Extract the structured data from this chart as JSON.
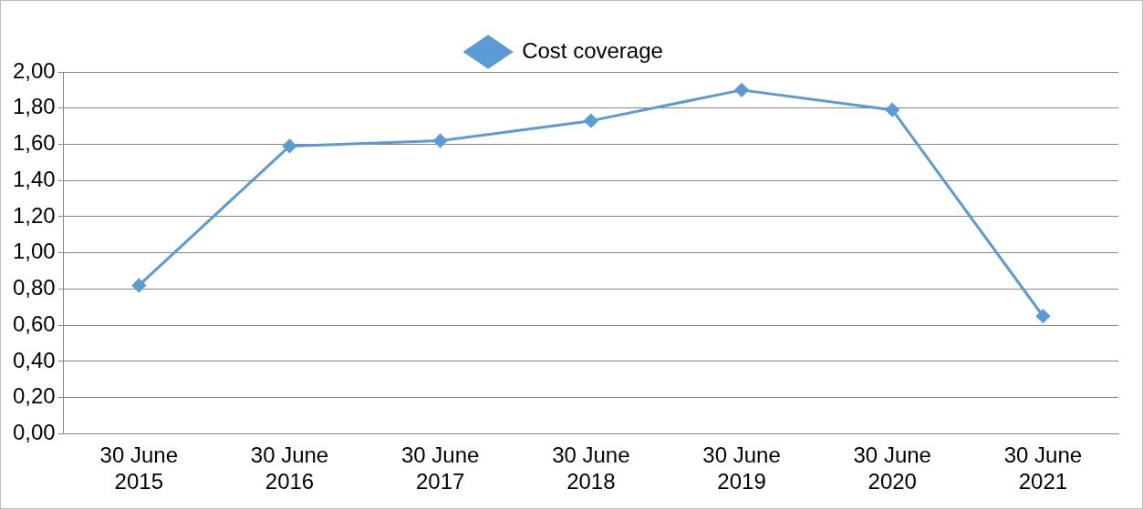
{
  "chart_data": {
    "type": "line",
    "categories": [
      "30 June 2015",
      "30 June 2016",
      "30 June 2017",
      "30 June 2018",
      "30 June 2019",
      "30 June 2020",
      "30 June 2021"
    ],
    "series": [
      {
        "name": "Cost coverage",
        "color": "#5b9bd5",
        "values": [
          0.82,
          1.59,
          1.62,
          1.73,
          1.9,
          1.79,
          0.65
        ]
      }
    ],
    "ylim": [
      0,
      2
    ],
    "yticks": [
      {
        "value": 0,
        "label": "0,00"
      },
      {
        "value": 0.2,
        "label": "0,20"
      },
      {
        "value": 0.4,
        "label": "0,40"
      },
      {
        "value": 0.6,
        "label": "0,60"
      },
      {
        "value": 0.8,
        "label": "0,80"
      },
      {
        "value": 1,
        "label": "1,00"
      },
      {
        "value": 1.2,
        "label": "1,20"
      },
      {
        "value": 1.4,
        "label": "1,40"
      },
      {
        "value": 1.6,
        "label": "1,60"
      },
      {
        "value": 1.8,
        "label": "1,80"
      },
      {
        "value": 2,
        "label": "2,00"
      }
    ],
    "grid": "y",
    "legend": "top",
    "marker": "diamond",
    "line_style": "solid"
  }
}
